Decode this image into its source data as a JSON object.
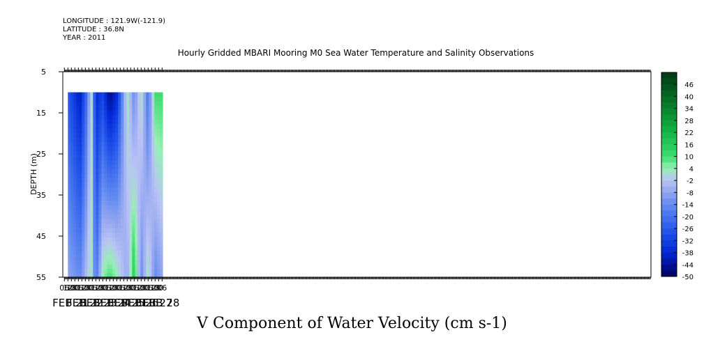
{
  "header": {
    "longitude": "LONGITUDE : 121.9W(-121.9)",
    "latitude": "LATITUDE : 36.8N",
    "year": "YEAR : 2011"
  },
  "chart_data": {
    "type": "heatmap",
    "title": "Hourly Gridded MBARI Mooring M0 Sea Water Temperature and Salinity Observations",
    "subtitle": "V Component of Water Velocity (cm s-1)",
    "ylabel": "DEPTH (m)",
    "xlabel": "",
    "y_reversed": true,
    "ylim": [
      55,
      5
    ],
    "y_ticks": [
      5,
      15,
      25,
      35,
      45,
      55
    ],
    "data_depth_range": [
      10,
      55
    ],
    "x_hour_ticks": [
      "06",
      "12",
      "18",
      "00",
      "06",
      "12",
      "18",
      "00",
      "06",
      "12",
      "18",
      "00",
      "06",
      "12",
      "18",
      "00",
      "06",
      "12",
      "18",
      "00",
      "06",
      "12",
      "18",
      "00",
      "06",
      "12",
      "18",
      "00",
      "06"
    ],
    "x_day_labels": [
      "FEB 21",
      "FEB 22",
      "FEB 23",
      "FEB 24",
      "FEB 25",
      "FEB 26",
      "FEB 27",
      "FEB 28"
    ],
    "colorbar_ticks": [
      46,
      40,
      34,
      28,
      22,
      16,
      10,
      4,
      -2,
      -8,
      -14,
      -20,
      -26,
      -32,
      -38,
      -44,
      -50
    ],
    "colorbar_range": [
      -50,
      52
    ],
    "colorbar_contour_interval": 3,
    "grid": false,
    "values_by_time": [
      {
        "time": "FEB 21 12",
        "surface": -26,
        "bottom": -8
      },
      {
        "time": "FEB 22 09",
        "surface": -41,
        "bottom": -14
      },
      {
        "time": "FEB 22 21",
        "surface": -20,
        "bottom": -2
      },
      {
        "time": "FEB 23 04",
        "surface": 4,
        "bottom": 4
      },
      {
        "time": "FEB 23 12",
        "surface": -38,
        "bottom": -20
      },
      {
        "time": "FEB 24 00",
        "surface": -32,
        "bottom": 4
      },
      {
        "time": "FEB 24 12",
        "surface": -47,
        "bottom": 10
      },
      {
        "time": "FEB 25 00",
        "surface": -38,
        "bottom": 4
      },
      {
        "time": "FEB 25 18",
        "surface": 4,
        "bottom": -8
      },
      {
        "time": "FEB 26 06",
        "surface": -14,
        "bottom": 16
      },
      {
        "time": "FEB 26 18",
        "surface": 4,
        "bottom": -14
      },
      {
        "time": "FEB 27 06",
        "surface": -20,
        "bottom": 4
      },
      {
        "time": "FEB 27 18",
        "surface": 10,
        "bottom": -14
      },
      {
        "time": "FEB 28 06",
        "surface": 10,
        "bottom": -8
      }
    ]
  }
}
